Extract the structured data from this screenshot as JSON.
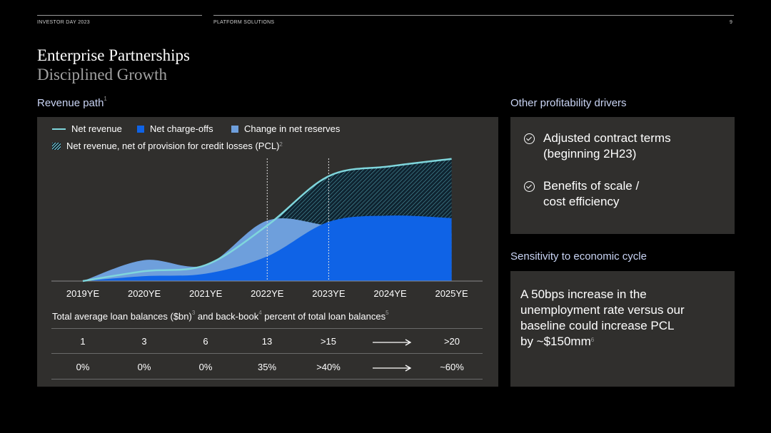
{
  "header": {
    "left_label": "INVESTOR DAY 2023",
    "center_label": "PLATFORM SOLUTIONS",
    "page_number": "9"
  },
  "title": "Enterprise Partnerships",
  "subtitle": "Disciplined Growth",
  "revenue_path": {
    "label": "Revenue path",
    "footnote": "1",
    "legend": {
      "net_revenue": "Net revenue",
      "net_charge_offs": "Net charge-offs",
      "change_in_reserves": "Change in net reserves",
      "net_of_pcl": "Net revenue, net of provision for credit losses (PCL)",
      "net_of_pcl_footnote": "2"
    }
  },
  "colors": {
    "net_revenue": "#7fd6dc",
    "net_charge_offs": "#0f63e6",
    "change_in_reserves": "#6e9fdc",
    "panel": "#302f2d"
  },
  "chart_data": {
    "type": "area",
    "categories": [
      "2019YE",
      "2020YE",
      "2021YE",
      "2022YE",
      "2023YE",
      "2024YE",
      "2025YE"
    ],
    "series": [
      {
        "name": "Net revenue",
        "type": "line",
        "values": [
          0,
          0.8,
          1.3,
          4.5,
          8.5,
          9.3,
          9.9
        ]
      },
      {
        "name": "Net charge-offs",
        "type": "area",
        "values": [
          0,
          0.4,
          0.6,
          2.0,
          4.8,
          5.3,
          5.1
        ]
      },
      {
        "name": "Change in net reserves",
        "type": "area",
        "values": [
          0,
          1.7,
          1.3,
          4.9,
          4.5,
          4.0,
          3.9
        ]
      }
    ],
    "dashed_lines_at": [
      "2022YE",
      "2023YE"
    ],
    "grid": false,
    "legend_position": "top-left"
  },
  "table": {
    "caption_part1": "Total average loan balances ($bn)",
    "caption_fn1": "3",
    "caption_part2": " and back-book",
    "caption_fn2": "4",
    "caption_part3": " percent of total loan balances",
    "caption_fn3": "5",
    "rows": [
      [
        "1",
        "3",
        "6",
        "13",
        ">15",
        ">20"
      ],
      [
        "0%",
        "0%",
        "0%",
        "35%",
        ">40%",
        "~60%"
      ]
    ]
  },
  "other_drivers": {
    "label": "Other profitability drivers",
    "items": [
      {
        "line1": "Adjusted contract terms",
        "line2": "(beginning 2H23)"
      },
      {
        "line1": "Benefits of scale /",
        "line2": "cost efficiency"
      }
    ]
  },
  "sensitivity": {
    "label": "Sensitivity to economic cycle",
    "line1": "A 50bps increase in the",
    "line2": "unemployment rate versus our",
    "line3": "baseline could increase PCL",
    "line4": "by ~$150mm",
    "footnote": "6"
  }
}
